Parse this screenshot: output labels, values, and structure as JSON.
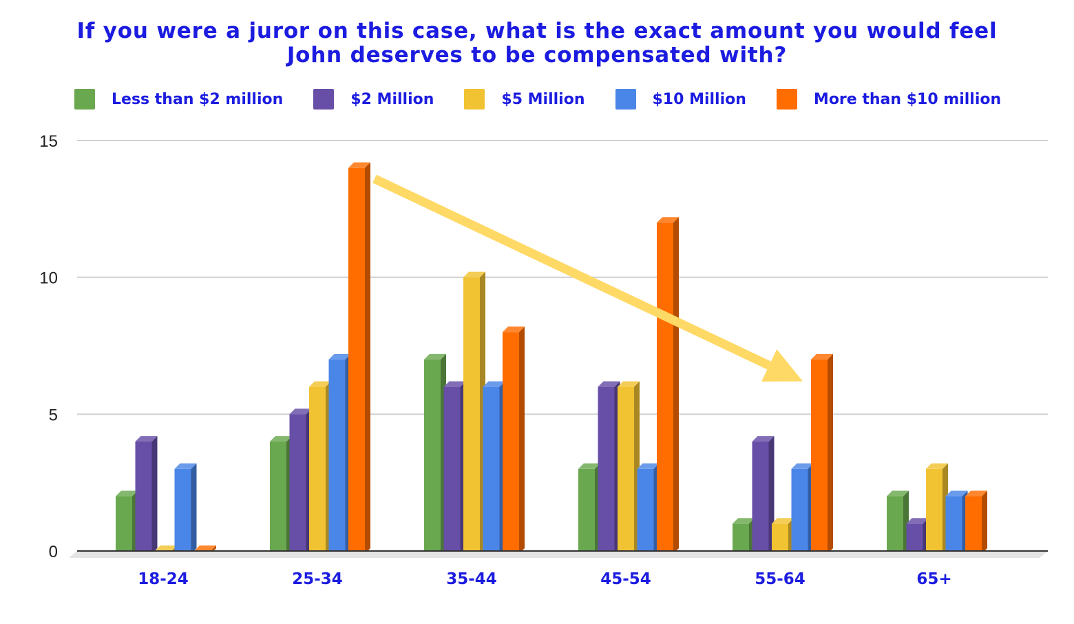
{
  "chart_data": {
    "type": "bar",
    "title": [
      "If you were a juror on this case, what is the exact amount you would feel",
      "John deserves to be compensated with?"
    ],
    "xlabel": "",
    "ylabel": "",
    "categories": [
      "18-24",
      "25-34",
      "35-44",
      "45-54",
      "55-64",
      "65+"
    ],
    "series": [
      {
        "name": "Less than $2 million",
        "color": "#6aa84f",
        "values": [
          2,
          4,
          7,
          3,
          1,
          2
        ]
      },
      {
        "name": "$2 Million",
        "color": "#674ea7",
        "values": [
          4,
          5,
          6,
          6,
          4,
          1
        ]
      },
      {
        "name": "$5 Million",
        "color": "#f1c232",
        "values": [
          0,
          6,
          10,
          6,
          1,
          3
        ]
      },
      {
        "name": "$10 Million",
        "color": "#4a86e8",
        "values": [
          3,
          7,
          6,
          3,
          3,
          2
        ]
      },
      {
        "name": "More than $10 million",
        "color": "#ff6d01",
        "values": [
          0,
          14,
          8,
          12,
          7,
          2
        ]
      }
    ],
    "ylim": [
      0,
      15
    ],
    "yticks": [
      0,
      5,
      10,
      15
    ],
    "grid": true,
    "legend_position": "top",
    "annotations": [
      {
        "type": "arrow",
        "color": "#ffd966",
        "from": {
          "category": "25-34",
          "value": 13.6
        },
        "to": {
          "category": "55-64",
          "value": 6.2
        }
      }
    ]
  },
  "colors": {
    "title": "#1c1ce0",
    "gridline": "#cfcfcf",
    "axis": "#333333",
    "arrow": "#ffd966"
  }
}
